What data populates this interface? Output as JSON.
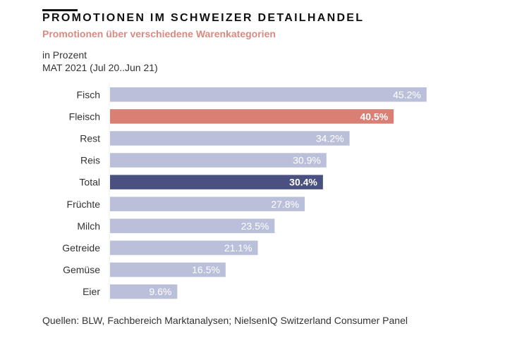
{
  "header": {
    "title": "PROMOTIONEN IM SCHWEIZER DETAILHANDEL",
    "subtitle": "Promotionen über verschiedene Warenkategorien",
    "unit_line1": "in Prozent",
    "unit_line2": "MAT 2021 (Jul 20..Jun 21)"
  },
  "footer": {
    "source": "Quellen: BLW, Fachbereich Marktanalysen; NielsenIQ Switzerland Consumer Panel"
  },
  "colors": {
    "default_bar": "#bbc0da",
    "highlight_bar": "#d97f74",
    "total_bar": "#4a5080",
    "subtitle": "#d98a80",
    "label_text": "#ffffff"
  },
  "chart_data": {
    "type": "bar",
    "orientation": "horizontal",
    "title": "PROMOTIONEN IM SCHWEIZER DETAILHANDEL",
    "subtitle": "Promotionen über verschiedene Warenkategorien",
    "xlabel": "in Prozent",
    "ylabel": "",
    "categories": [
      "Fisch",
      "Fleisch",
      "Rest",
      "Reis",
      "Total",
      "Früchte",
      "Milch",
      "Getreide",
      "Gemüse",
      "Eier"
    ],
    "values": [
      45.2,
      40.5,
      34.2,
      30.9,
      30.4,
      27.8,
      23.5,
      21.1,
      16.5,
      9.6
    ],
    "value_labels": [
      "45.2%",
      "40.5%",
      "34.2%",
      "30.9%",
      "30.4%",
      "27.8%",
      "23.5%",
      "21.1%",
      "16.5%",
      "9.6%"
    ],
    "highlight": {
      "Fleisch": "highlight",
      "Total": "total"
    },
    "xlim": [
      0,
      50
    ],
    "grid": false,
    "legend": "none"
  }
}
